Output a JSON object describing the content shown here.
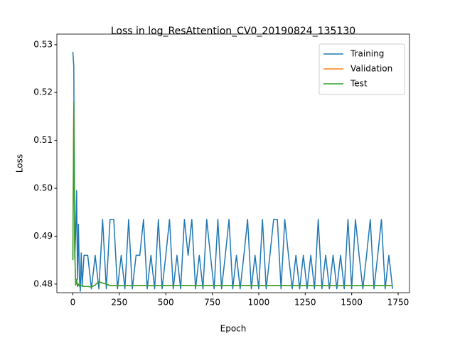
{
  "chart_data": {
    "type": "line",
    "title": "Loss in log_ResAttention_CV0_20190824_135130",
    "x_label": "Epoch",
    "y_label": "Loss",
    "x": [
      0,
      5,
      10,
      15,
      20,
      25,
      30,
      35,
      40,
      45,
      50,
      60,
      80,
      100,
      120,
      140,
      160,
      180,
      200,
      220,
      240,
      260,
      280,
      300,
      320,
      340,
      360,
      380,
      400,
      420,
      440,
      460,
      480,
      500,
      520,
      540,
      560,
      580,
      600,
      620,
      640,
      660,
      680,
      700,
      720,
      740,
      760,
      780,
      800,
      820,
      840,
      860,
      880,
      900,
      920,
      940,
      960,
      980,
      1000,
      1020,
      1040,
      1060,
      1080,
      1100,
      1120,
      1140,
      1160,
      1180,
      1200,
      1220,
      1240,
      1260,
      1280,
      1300,
      1320,
      1340,
      1360,
      1380,
      1400,
      1420,
      1440,
      1460,
      1480,
      1500,
      1520,
      1540,
      1560,
      1580,
      1600,
      1620,
      1640,
      1660,
      1680,
      1700,
      1720
    ],
    "series": [
      {
        "name": "Training",
        "color": "#1f77b4",
        "values": [
          0.5285,
          0.5255,
          0.4855,
          0.4905,
          0.4995,
          0.481,
          0.4925,
          0.4815,
          0.4785,
          0.4865,
          0.4795,
          0.486,
          0.486,
          0.479,
          0.486,
          0.479,
          0.4935,
          0.479,
          0.4935,
          0.4935,
          0.479,
          0.486,
          0.479,
          0.4935,
          0.479,
          0.486,
          0.486,
          0.4935,
          0.479,
          0.486,
          0.479,
          0.4935,
          0.479,
          0.486,
          0.4935,
          0.479,
          0.486,
          0.479,
          0.4935,
          0.486,
          0.4935,
          0.479,
          0.486,
          0.479,
          0.4935,
          0.486,
          0.479,
          0.4935,
          0.479,
          0.486,
          0.4935,
          0.479,
          0.486,
          0.479,
          0.486,
          0.4935,
          0.479,
          0.486,
          0.479,
          0.4935,
          0.479,
          0.486,
          0.4935,
          0.4935,
          0.479,
          0.4935,
          0.486,
          0.479,
          0.486,
          0.479,
          0.486,
          0.479,
          0.486,
          0.479,
          0.4935,
          0.479,
          0.486,
          0.479,
          0.486,
          0.479,
          0.486,
          0.479,
          0.4935,
          0.479,
          0.4935,
          0.486,
          0.479,
          0.486,
          0.4935,
          0.479,
          0.486,
          0.4935,
          0.479,
          0.486,
          0.479
        ]
      },
      {
        "name": "Validation",
        "color": "#ff7f0e",
        "values": [
          0.485,
          0.518,
          0.4875,
          0.4798,
          0.481,
          0.4795,
          0.48,
          0.4796,
          0.4798,
          0.4797,
          0.4797,
          0.4795,
          0.4795,
          0.4794,
          0.4798,
          0.4805,
          0.4802,
          0.48,
          0.4797,
          0.4797,
          0.4797,
          0.4797,
          0.4797,
          0.4797,
          0.4797,
          0.4797,
          0.4797,
          0.4797,
          0.4797,
          0.4797,
          0.4797,
          0.4797,
          0.4797,
          0.4797,
          0.4797,
          0.4797,
          0.4797,
          0.4797,
          0.4797,
          0.4797,
          0.4797,
          0.4797,
          0.4797,
          0.4797,
          0.4797,
          0.4797,
          0.4797,
          0.4797,
          0.4797,
          0.4797,
          0.4797,
          0.4797,
          0.4797,
          0.4797,
          0.4797,
          0.4797,
          0.4797,
          0.4797,
          0.4797,
          0.4797,
          0.4797,
          0.4797,
          0.4797,
          0.4797,
          0.4797,
          0.4797,
          0.4797,
          0.4797,
          0.4797,
          0.4797,
          0.4797,
          0.4797,
          0.4797,
          0.4797,
          0.4797,
          0.4797,
          0.4797,
          0.4797,
          0.4797,
          0.4797,
          0.4797,
          0.4797,
          0.4797,
          0.4797,
          0.4797,
          0.4797,
          0.4797,
          0.4797,
          0.4797,
          0.4797,
          0.4797,
          0.4797,
          0.4797,
          0.4797,
          0.4797
        ]
      },
      {
        "name": "Test",
        "color": "#2ca02c",
        "values": [
          0.485,
          0.518,
          0.4875,
          0.4798,
          0.481,
          0.4795,
          0.48,
          0.4796,
          0.4798,
          0.4797,
          0.4797,
          0.4795,
          0.4795,
          0.4794,
          0.4798,
          0.4805,
          0.4802,
          0.48,
          0.4797,
          0.4797,
          0.4797,
          0.4797,
          0.4797,
          0.4797,
          0.4797,
          0.4797,
          0.4797,
          0.4797,
          0.4797,
          0.4797,
          0.4797,
          0.4797,
          0.4797,
          0.4797,
          0.4797,
          0.4797,
          0.4797,
          0.4797,
          0.4797,
          0.4797,
          0.4797,
          0.4797,
          0.4797,
          0.4797,
          0.4797,
          0.4797,
          0.4797,
          0.4797,
          0.4797,
          0.4797,
          0.4797,
          0.4797,
          0.4797,
          0.4797,
          0.4797,
          0.4797,
          0.4797,
          0.4797,
          0.4797,
          0.4797,
          0.4797,
          0.4797,
          0.4797,
          0.4797,
          0.4797,
          0.4797,
          0.4797,
          0.4797,
          0.4797,
          0.4797,
          0.4797,
          0.4797,
          0.4797,
          0.4797,
          0.4797,
          0.4797,
          0.4797,
          0.4797,
          0.4797,
          0.4797,
          0.4797,
          0.4797,
          0.4797,
          0.4797,
          0.4797,
          0.4797,
          0.4797,
          0.4797,
          0.4797,
          0.4797,
          0.4797,
          0.4797,
          0.4797,
          0.4797,
          0.4797
        ]
      }
    ],
    "xlim": [
      -86,
      1811
    ],
    "xticks": [
      0,
      250,
      500,
      750,
      1000,
      1250,
      1500,
      1750
    ],
    "ylim": [
      0.4782,
      0.5322
    ],
    "yticks": [
      0.48,
      0.49,
      {
        "value": 0.5,
        "label": "0.50"
      },
      0.51,
      0.52,
      0.53
    ],
    "legend": "upper right",
    "grid": false
  }
}
